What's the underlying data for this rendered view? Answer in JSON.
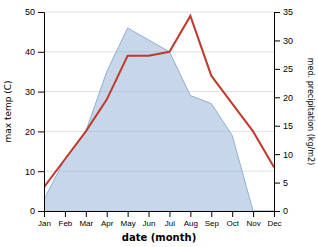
{
  "chart_data": {
    "type": "line",
    "x_label": "date (month)",
    "y_label": "max temp (C)",
    "y2_label": "med. precipitation (kg/m2)",
    "categories": [
      "Jan",
      "Feb",
      "Mar",
      "Apr",
      "May",
      "Jun",
      "Jul",
      "Aug",
      "Sep",
      "Oct",
      "Nov",
      "Dec"
    ],
    "series": [
      {
        "type": "area",
        "color": "#8fafd4",
        "values": [
          3,
          13,
          20,
          35,
          46,
          43,
          40,
          29,
          27,
          19,
          0,
          0
        ]
      },
      {
        "type": "line",
        "color": "#c0392b",
        "values": [
          6,
          13,
          20,
          28,
          39,
          39,
          40,
          49,
          34,
          27,
          20,
          11
        ]
      }
    ],
    "ylim": [
      0,
      50
    ],
    "yticks": [
      0,
      10,
      20,
      30,
      40,
      50
    ],
    "y2lim": [
      0,
      35
    ],
    "y2ticks": [
      0,
      5,
      10,
      15,
      20,
      25,
      30,
      35
    ],
    "grid": true
  }
}
